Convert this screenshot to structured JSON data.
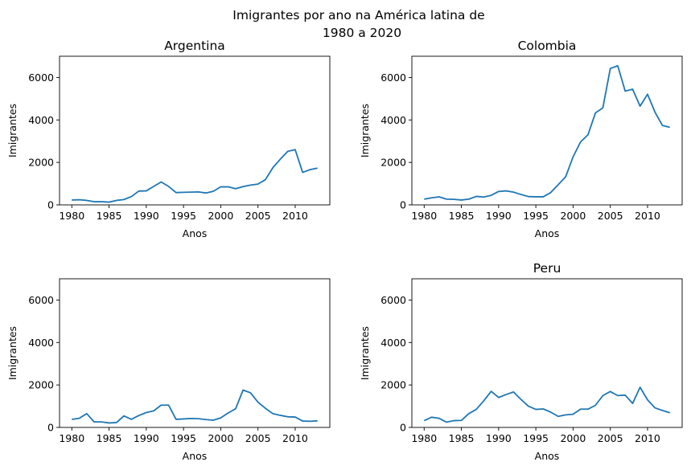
{
  "figure": {
    "title_line1": "Imigrantes por ano na América latina de",
    "title_line2": "1980 a 2020"
  },
  "colors": {
    "line": "#1f77b4"
  },
  "chart_data": [
    {
      "type": "line",
      "title": "Argentina",
      "xlabel": "Anos",
      "ylabel": "Imigrantes",
      "xlim": [
        1978.35,
        2014.65
      ],
      "ylim": [
        0,
        7000
      ],
      "xticks": [
        1980,
        1985,
        1990,
        1995,
        2000,
        2005,
        2010
      ],
      "yticks": [
        0,
        2000,
        4000,
        6000
      ],
      "grid": false,
      "x": [
        1980,
        1981,
        1982,
        1983,
        1984,
        1985,
        1986,
        1987,
        1988,
        1989,
        1990,
        1991,
        1992,
        1993,
        1994,
        1995,
        1996,
        1997,
        1998,
        1999,
        2000,
        2001,
        2002,
        2003,
        2004,
        2005,
        2006,
        2007,
        2008,
        2009,
        2010,
        2011,
        2012,
        2013
      ],
      "y": [
        230,
        240,
        210,
        150,
        150,
        130,
        210,
        250,
        390,
        650,
        660,
        870,
        1080,
        870,
        580,
        590,
        600,
        610,
        560,
        640,
        850,
        850,
        760,
        860,
        930,
        980,
        1190,
        1750,
        2150,
        2520,
        2600,
        1530,
        1660,
        1730
      ]
    },
    {
      "type": "line",
      "title": "Colombia",
      "xlabel": "Anos",
      "ylabel": "Imigrantes",
      "xlim": [
        1978.35,
        2014.65
      ],
      "ylim": [
        0,
        7000
      ],
      "xticks": [
        1980,
        1985,
        1990,
        1995,
        2000,
        2005,
        2010
      ],
      "yticks": [
        0,
        2000,
        4000,
        6000
      ],
      "grid": false,
      "x": [
        1980,
        1981,
        1982,
        1983,
        1984,
        1985,
        1986,
        1987,
        1988,
        1989,
        1990,
        1991,
        1992,
        1993,
        1994,
        1995,
        1996,
        1997,
        1998,
        1999,
        2000,
        2001,
        2002,
        2003,
        2004,
        2005,
        2006,
        2007,
        2008,
        2009,
        2010,
        2011,
        2012,
        2013
      ],
      "y": [
        270,
        330,
        380,
        270,
        260,
        230,
        270,
        400,
        370,
        450,
        630,
        660,
        600,
        490,
        390,
        380,
        380,
        580,
        950,
        1320,
        2260,
        2960,
        3300,
        4330,
        4570,
        6420,
        6550,
        5360,
        5450,
        4650,
        5210,
        4370,
        3740,
        3650
      ]
    },
    {
      "type": "line",
      "title": "",
      "xlabel": "Anos",
      "ylabel": "Imigrantes",
      "xlim": [
        1978.35,
        2014.65
      ],
      "ylim": [
        0,
        7000
      ],
      "xticks": [
        1980,
        1985,
        1990,
        1995,
        2000,
        2005,
        2010
      ],
      "yticks": [
        0,
        2000,
        4000,
        6000
      ],
      "grid": false,
      "x": [
        1980,
        1981,
        1982,
        1983,
        1984,
        1985,
        1986,
        1987,
        1988,
        1989,
        1990,
        1991,
        1992,
        1993,
        1994,
        1995,
        1996,
        1997,
        1998,
        1999,
        2000,
        2001,
        2002,
        2003,
        2004,
        2005,
        2006,
        2007,
        2008,
        2009,
        2010,
        2011,
        2012,
        2013
      ],
      "y": [
        380,
        430,
        650,
        260,
        260,
        210,
        230,
        540,
        380,
        560,
        700,
        780,
        1050,
        1050,
        380,
        400,
        420,
        410,
        370,
        340,
        450,
        680,
        880,
        1760,
        1630,
        1190,
        900,
        650,
        570,
        500,
        490,
        300,
        290,
        310
      ]
    },
    {
      "type": "line",
      "title": "Peru",
      "xlabel": "Anos",
      "ylabel": "Imigrantes",
      "xlim": [
        1978.35,
        2014.65
      ],
      "ylim": [
        0,
        7000
      ],
      "xticks": [
        1980,
        1985,
        1990,
        1995,
        2000,
        2005,
        2010
      ],
      "yticks": [
        0,
        2000,
        4000,
        6000
      ],
      "grid": false,
      "x": [
        1980,
        1981,
        1982,
        1983,
        1984,
        1985,
        1986,
        1987,
        1988,
        1989,
        1990,
        1991,
        1992,
        1993,
        1994,
        1995,
        1996,
        1997,
        1998,
        1999,
        2000,
        2001,
        2002,
        2003,
        2004,
        2005,
        2006,
        2007,
        2008,
        2009,
        2010,
        2011,
        2012,
        2013
      ],
      "y": [
        320,
        480,
        430,
        250,
        320,
        330,
        650,
        850,
        1250,
        1700,
        1410,
        1550,
        1670,
        1320,
        1000,
        850,
        870,
        720,
        520,
        590,
        620,
        860,
        860,
        1040,
        1500,
        1690,
        1500,
        1520,
        1130,
        1890,
        1300,
        920,
        800,
        690
      ]
    }
  ]
}
